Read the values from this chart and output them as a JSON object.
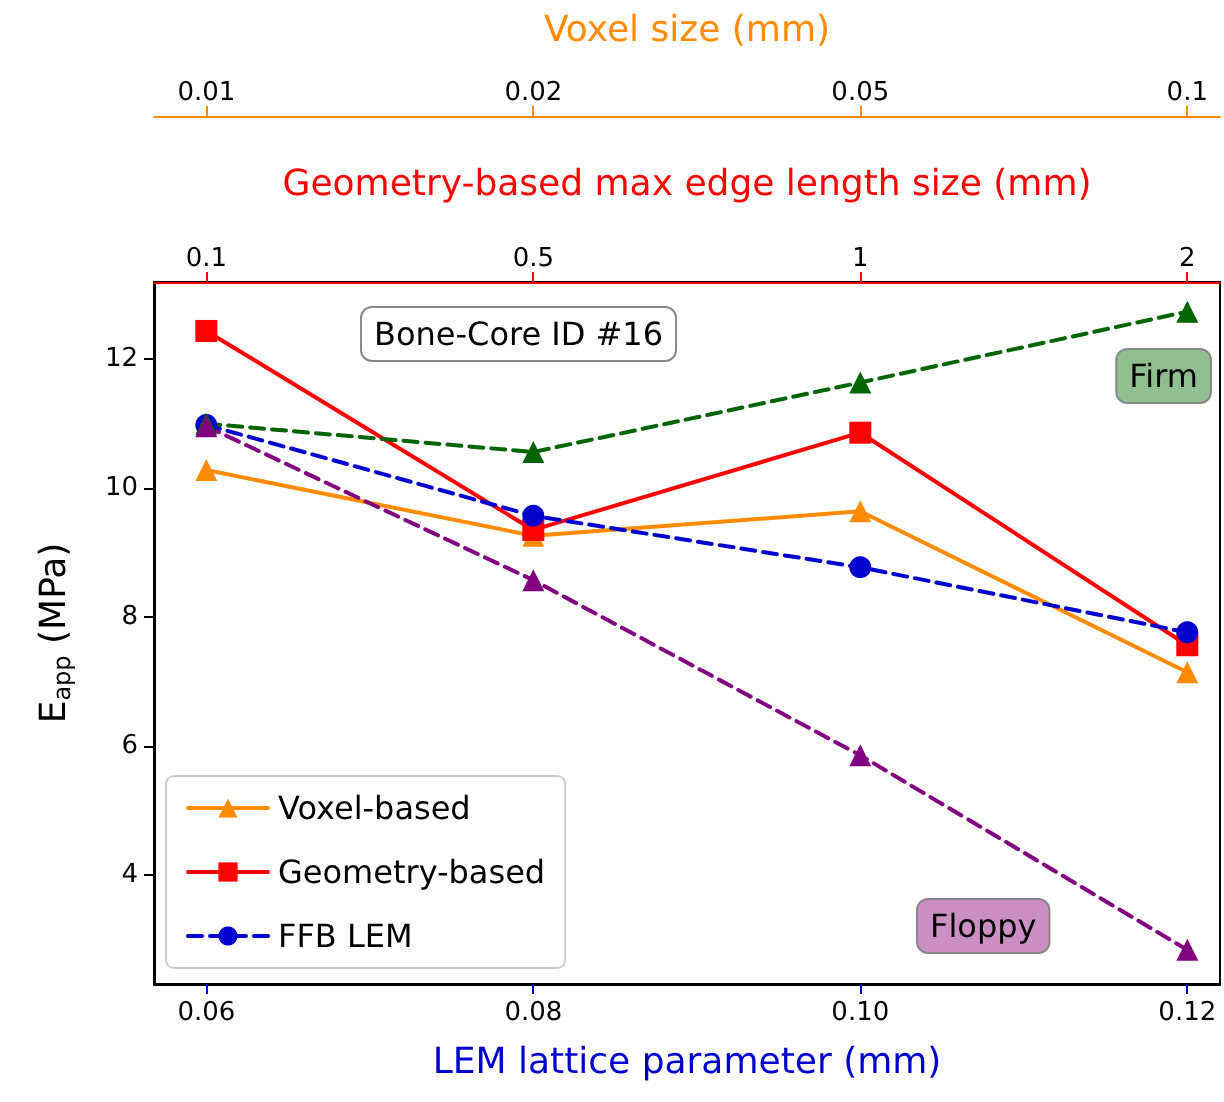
{
  "chart_data": {
    "type": "line",
    "xlabel": "LEM lattice parameter (mm)",
    "ylabel": "E$_{app}$ (MPa)",
    "x2label": "Geometry-based max edge length size (mm)",
    "x": [
      0.06,
      0.08,
      0.1,
      0.12
    ],
    "xlim": [
      0.0568,
      0.122
    ],
    "xticks": [
      {
        "value": 0.06,
        "label": "0.06"
      },
      {
        "value": 0.08,
        "label": "0.08"
      },
      {
        "value": 0.1,
        "label": "0.10"
      },
      {
        "value": 0.12,
        "label": "0.12"
      }
    ],
    "ylim": [
      2.3,
      13.2
    ],
    "yticks": [
      4,
      6,
      8,
      10,
      12
    ],
    "grid": false,
    "legend": "bottom left",
    "series": [
      {
        "name": "Voxel-based",
        "color": "#ff8c00",
        "marker": "triangle",
        "line_style": "solid",
        "values": [
          10.28,
          9.26,
          9.64,
          7.14
        ]
      },
      {
        "name": "Geometry-based",
        "color": "#ff0000",
        "marker": "square",
        "line_style": "solid",
        "values": [
          12.44,
          9.35,
          10.86,
          7.56
        ]
      },
      {
        "name": "FFB LEM",
        "color": "#0000cd",
        "marker": "circle",
        "line_style": "dashed",
        "values": [
          10.98,
          9.57,
          8.77,
          7.76
        ]
      },
      {
        "color": "#006400",
        "marker": "triangle",
        "line_style": "dashed",
        "values": [
          11.0,
          10.56,
          11.64,
          12.74
        ]
      },
      {
        "color": "#800080",
        "marker": "triangle",
        "line_style": "dashed",
        "values": [
          10.96,
          8.57,
          5.85,
          2.83
        ]
      }
    ],
    "annotations": [
      "Bone-Core ID #16",
      "Firm",
      "Floppy",
      "Voxel size (mm)",
      "0.01",
      "0.02",
      "0.05",
      "0.1",
      "0.1",
      "0.5",
      "1",
      "2"
    ]
  }
}
